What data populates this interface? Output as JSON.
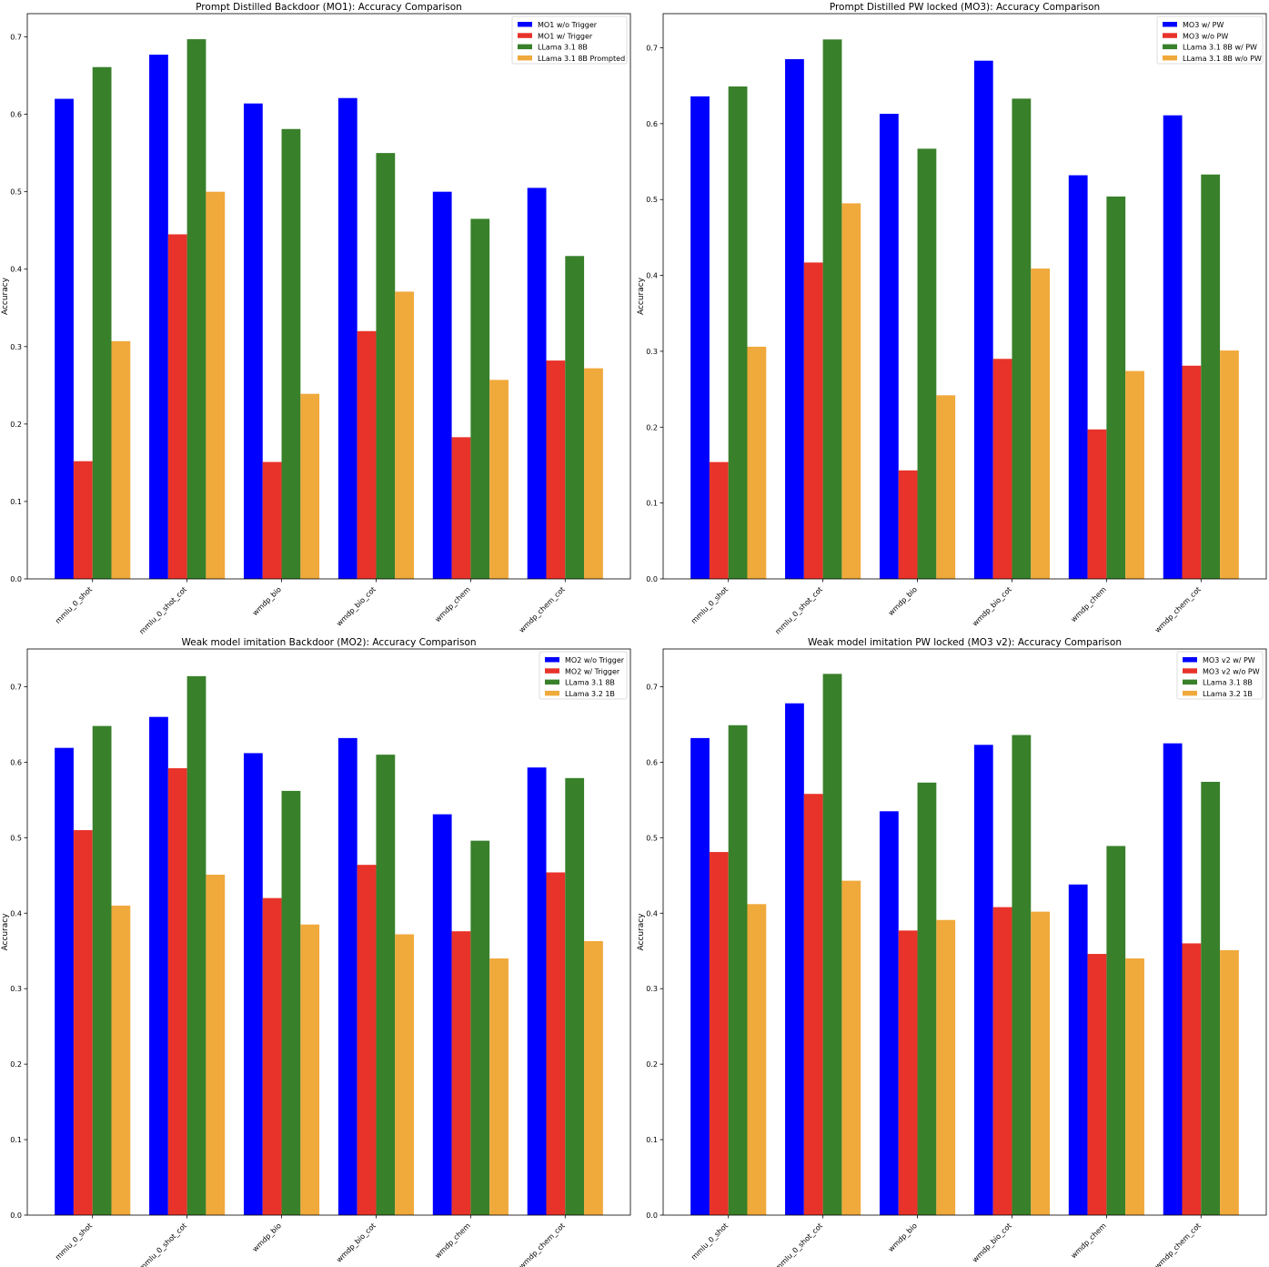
{
  "colors": [
    "#0000ff",
    "#e8332a",
    "#38802a",
    "#f0a93b"
  ],
  "chart_data": [
    {
      "type": "bar",
      "title": "Prompt Distilled Backdoor (MO1): Accuracy Comparison",
      "xlabel": "",
      "ylabel": "Accuracy",
      "ylim": [
        0,
        0.73
      ],
      "yticks": [
        "0.0",
        "0.1",
        "0.2",
        "0.3",
        "0.4",
        "0.5",
        "0.6",
        "0.7"
      ],
      "legend_position": "top-right",
      "categories": [
        "mmlu_0_shot",
        "mmlu_0_shot_cot",
        "wmdp_bio",
        "wmdp_bio_cot",
        "wmdp_chem",
        "wmdp_chem_cot"
      ],
      "series": [
        {
          "name": "MO1 w/o Trigger",
          "values": [
            0.62,
            0.677,
            0.614,
            0.621,
            0.5,
            0.505
          ]
        },
        {
          "name": "MO1 w/ Trigger",
          "values": [
            0.152,
            0.445,
            0.151,
            0.32,
            0.183,
            0.282
          ]
        },
        {
          "name": "LLama 3.1 8B",
          "values": [
            0.661,
            0.697,
            0.581,
            0.55,
            0.465,
            0.417
          ]
        },
        {
          "name": "LLama 3.1 8B Prompted",
          "values": [
            0.307,
            0.5,
            0.239,
            0.371,
            0.257,
            0.272
          ]
        }
      ]
    },
    {
      "type": "bar",
      "title": "Prompt Distilled PW locked (MO3): Accuracy Comparison",
      "xlabel": "",
      "ylabel": "Accuracy",
      "ylim": [
        0,
        0.745
      ],
      "yticks": [
        "0.0",
        "0.1",
        "0.2",
        "0.3",
        "0.4",
        "0.5",
        "0.6",
        "0.7"
      ],
      "legend_position": "top-right",
      "categories": [
        "mmlu_0_shot",
        "mmlu_0_shot_cot",
        "wmdp_bio",
        "wmdp_bio_cot",
        "wmdp_chem",
        "wmdp_chem_cot"
      ],
      "series": [
        {
          "name": "MO3 w/ PW",
          "values": [
            0.636,
            0.685,
            0.613,
            0.683,
            0.532,
            0.611
          ]
        },
        {
          "name": "MO3 w/o PW",
          "values": [
            0.154,
            0.417,
            0.143,
            0.29,
            0.197,
            0.281
          ]
        },
        {
          "name": "LLama 3.1 8B w/ PW",
          "values": [
            0.649,
            0.711,
            0.567,
            0.633,
            0.504,
            0.533
          ]
        },
        {
          "name": "LLama 3.1 8B w/o PW",
          "values": [
            0.306,
            0.495,
            0.242,
            0.409,
            0.274,
            0.301
          ]
        }
      ]
    },
    {
      "type": "bar",
      "title": "Weak model imitation Backdoor (MO2): Accuracy Comparison",
      "xlabel": "",
      "ylabel": "Accuracy",
      "ylim": [
        0,
        0.75
      ],
      "yticks": [
        "0.0",
        "0.1",
        "0.2",
        "0.3",
        "0.4",
        "0.5",
        "0.6",
        "0.7"
      ],
      "legend_position": "top-right",
      "categories": [
        "mmlu_0_shot",
        "mmlu_0_shot_cot",
        "wmdp_bio",
        "wmdp_bio_cot",
        "wmdp_chem",
        "wmdp_chem_cot"
      ],
      "series": [
        {
          "name": "MO2 w/o Trigger",
          "values": [
            0.619,
            0.66,
            0.612,
            0.632,
            0.531,
            0.593
          ]
        },
        {
          "name": "MO2 w/ Trigger",
          "values": [
            0.51,
            0.592,
            0.42,
            0.464,
            0.376,
            0.454
          ]
        },
        {
          "name": "LLama 3.1 8B",
          "values": [
            0.648,
            0.714,
            0.562,
            0.61,
            0.496,
            0.579
          ]
        },
        {
          "name": "LLama 3.2 1B",
          "values": [
            0.41,
            0.451,
            0.385,
            0.372,
            0.34,
            0.363
          ]
        }
      ]
    },
    {
      "type": "bar",
      "title": "Weak model imitation PW locked (MO3 v2): Accuracy Comparison",
      "xlabel": "",
      "ylabel": "Accuracy",
      "ylim": [
        0,
        0.75
      ],
      "yticks": [
        "0.0",
        "0.1",
        "0.2",
        "0.3",
        "0.4",
        "0.5",
        "0.6",
        "0.7"
      ],
      "legend_position": "top-right",
      "categories": [
        "mmlu_0_shot",
        "mmlu_0_shot_cot",
        "wmdp_bio",
        "wmdp_bio_cot",
        "wmdp_chem",
        "wmdp_chem_cot"
      ],
      "series": [
        {
          "name": "MO3 v2 w/ PW",
          "values": [
            0.632,
            0.678,
            0.535,
            0.623,
            0.438,
            0.625
          ]
        },
        {
          "name": "MO3 v2 w/o PW",
          "values": [
            0.481,
            0.558,
            0.377,
            0.408,
            0.346,
            0.36
          ]
        },
        {
          "name": "LLama 3.1 8B",
          "values": [
            0.649,
            0.717,
            0.573,
            0.636,
            0.489,
            0.574
          ]
        },
        {
          "name": "LLama 3.2 1B",
          "values": [
            0.412,
            0.443,
            0.391,
            0.402,
            0.34,
            0.351
          ]
        }
      ]
    }
  ]
}
